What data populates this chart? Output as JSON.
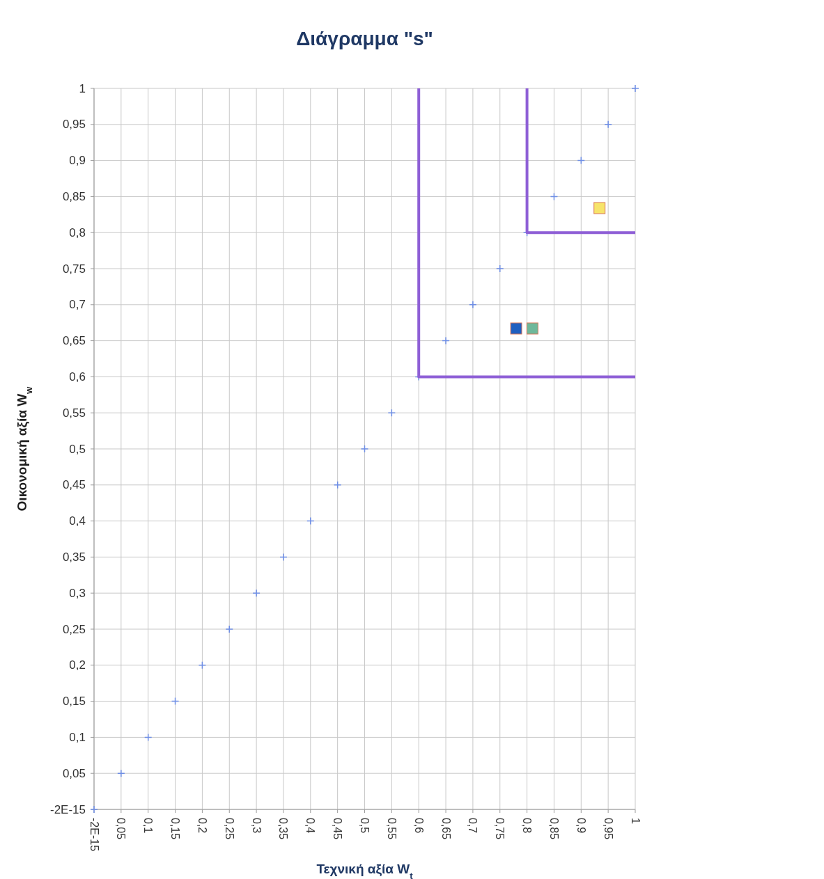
{
  "chart_data": {
    "type": "scatter",
    "title": "Διάγραμμα \"s\"",
    "xlabel": "Τεχνική αξία W$_{t}$",
    "ylabel": "Οικονομική αξία W$_{w}$",
    "grid": true,
    "xlim": [
      -2e-15,
      1
    ],
    "ylim": [
      -2e-15,
      1
    ],
    "xticks": [
      {
        "value": -2e-15,
        "label": "-2E-15"
      },
      {
        "value": 0.05,
        "label": "0,05"
      },
      {
        "value": 0.1,
        "label": "0,1"
      },
      {
        "value": 0.15,
        "label": "0,15"
      },
      {
        "value": 0.2,
        "label": "0,2"
      },
      {
        "value": 0.25,
        "label": "0,25"
      },
      {
        "value": 0.3,
        "label": "0,3"
      },
      {
        "value": 0.35,
        "label": "0,35"
      },
      {
        "value": 0.4,
        "label": "0,4"
      },
      {
        "value": 0.45,
        "label": "0,45"
      },
      {
        "value": 0.5,
        "label": "0,5"
      },
      {
        "value": 0.55,
        "label": "0,55"
      },
      {
        "value": 0.6,
        "label": "0,6"
      },
      {
        "value": 0.65,
        "label": "0,65"
      },
      {
        "value": 0.7,
        "label": "0,7"
      },
      {
        "value": 0.75,
        "label": "0,75"
      },
      {
        "value": 0.8,
        "label": "0,8"
      },
      {
        "value": 0.85,
        "label": "0,85"
      },
      {
        "value": 0.9,
        "label": "0,9"
      },
      {
        "value": 0.95,
        "label": "0,95"
      },
      1
    ],
    "yticks": [
      {
        "value": -2e-15,
        "label": "-2E-15"
      },
      {
        "value": 0.05,
        "label": "0,05"
      },
      {
        "value": 0.1,
        "label": "0,1"
      },
      {
        "value": 0.15,
        "label": "0,15"
      },
      {
        "value": 0.2,
        "label": "0,2"
      },
      {
        "value": 0.25,
        "label": "0,25"
      },
      {
        "value": 0.3,
        "label": "0,3"
      },
      {
        "value": 0.35,
        "label": "0,35"
      },
      {
        "value": 0.4,
        "label": "0,4"
      },
      {
        "value": 0.45,
        "label": "0,45"
      },
      {
        "value": 0.5,
        "label": "0,5"
      },
      {
        "value": 0.55,
        "label": "0,55"
      },
      {
        "value": 0.6,
        "label": "0,6"
      },
      {
        "value": 0.65,
        "label": "0,65"
      },
      {
        "value": 0.7,
        "label": "0,7"
      },
      {
        "value": 0.75,
        "label": "0,75"
      },
      {
        "value": 0.8,
        "label": "0,8"
      },
      {
        "value": 0.85,
        "label": "0,85"
      },
      {
        "value": 0.9,
        "label": "0,9"
      },
      {
        "value": 0.95,
        "label": "0,95"
      },
      1
    ],
    "series": [
      {
        "marker": "cross",
        "color": "#6f8fe6",
        "x": [
          0,
          0.05,
          0.1,
          0.15,
          0.2,
          0.25,
          0.3,
          0.35,
          0.4,
          0.45,
          0.5,
          0.55,
          0.6,
          0.65,
          0.7,
          0.75,
          0.8,
          0.85,
          0.9,
          0.95,
          1
        ],
        "values": [
          0,
          0.05,
          0.1,
          0.15,
          0.2,
          0.25,
          0.3,
          0.35,
          0.4,
          0.45,
          0.5,
          0.55,
          0.6,
          0.65,
          0.7,
          0.75,
          0.8,
          0.85,
          0.9,
          0.95,
          1
        ]
      },
      {
        "type": "line",
        "marker": "none",
        "color": "#8e5fd6",
        "x": [
          0.6,
          0.6,
          1
        ],
        "values": [
          1,
          0.6,
          0.6
        ]
      },
      {
        "type": "line",
        "marker": "none",
        "color": "#8e5fd6",
        "x": [
          0.8,
          0.8,
          1
        ],
        "values": [
          1,
          0.8,
          0.8
        ]
      },
      {
        "marker": "square",
        "color": "#1f5fc0",
        "x": [
          0.78
        ],
        "values": [
          0.667
        ]
      },
      {
        "marker": "square",
        "color": "#6fb89a",
        "x": [
          0.81
        ],
        "values": [
          0.667
        ]
      },
      {
        "marker": "square",
        "color": "#f7e46a",
        "x": [
          0.934
        ],
        "values": [
          0.834
        ]
      }
    ]
  }
}
